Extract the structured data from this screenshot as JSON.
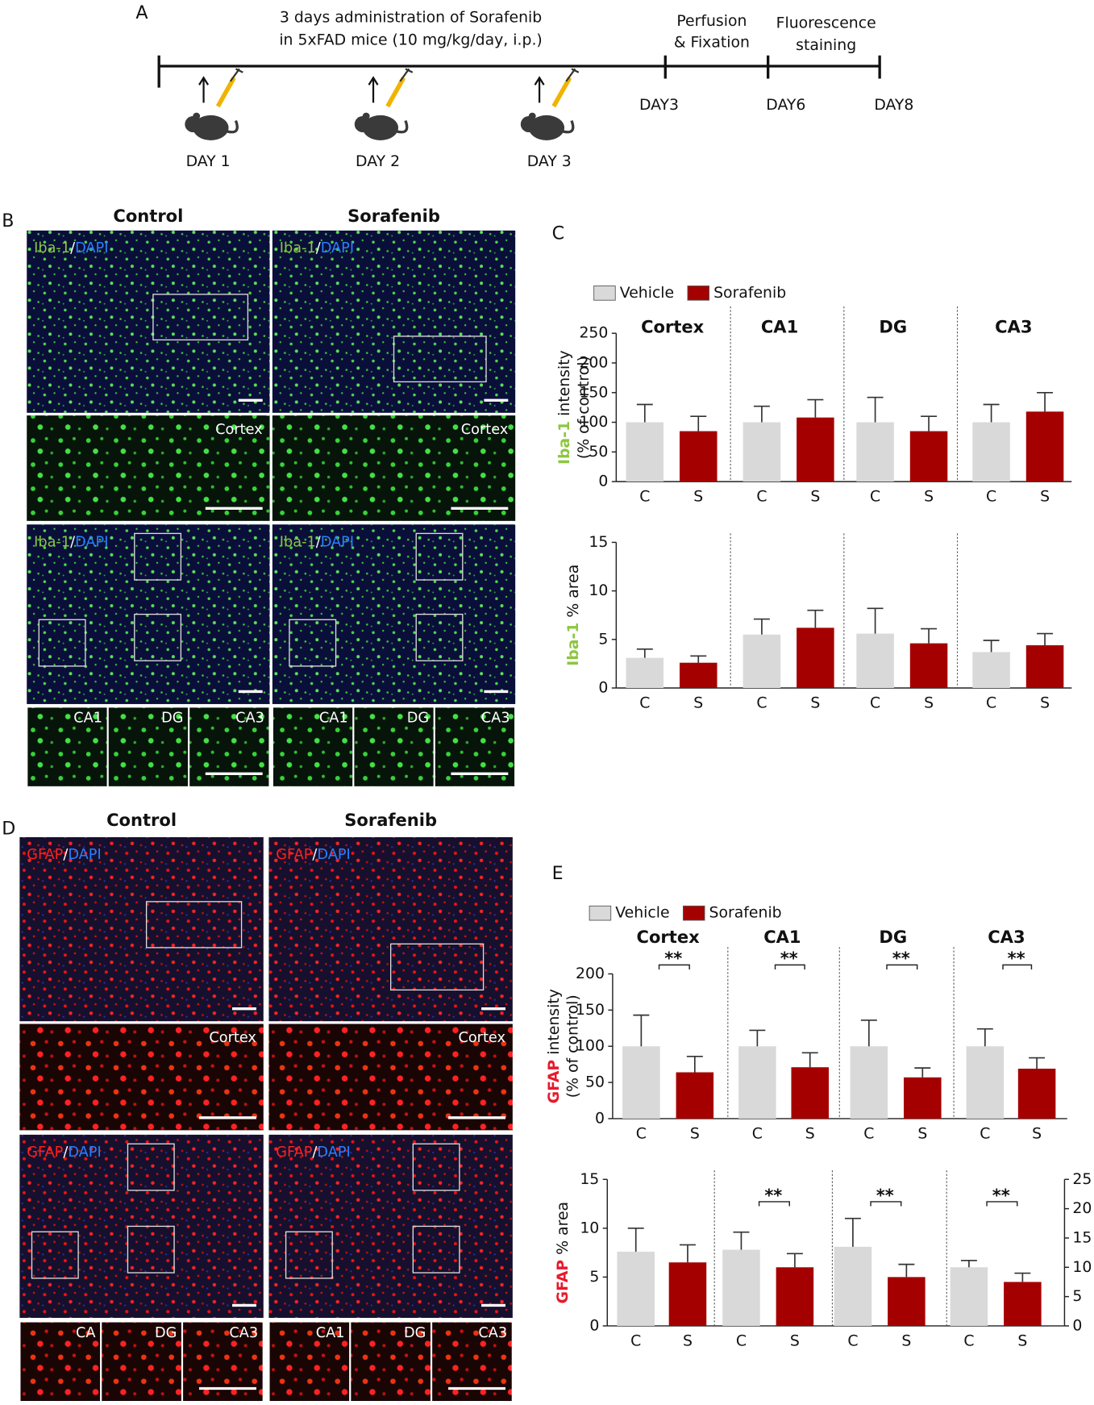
{
  "panel_labels": [
    "A",
    "B",
    "C",
    "D",
    "E"
  ],
  "timeline": {
    "caption": [
      "3 days administration of Sorafenib",
      "in 5xFAD mice (10 mg/kg/day, i.p.)"
    ],
    "perfusion": [
      "Perfusion",
      "& Fixation"
    ],
    "staining": [
      "Fluorescence",
      "staining"
    ],
    "milestones": [
      "DAY3",
      "DAY6",
      "DAY8"
    ],
    "injections": [
      "DAY 1",
      "DAY 2",
      "DAY 3"
    ]
  },
  "images": [
    {
      "conditions": [
        "Control",
        "Sorafenib"
      ],
      "stain": "Iba-1",
      "separator": "/",
      "counterstain": "DAPI",
      "zoom_label": "Cortex",
      "sub_labels": [
        [
          "CA1",
          "DG",
          "CA3"
        ],
        [
          "CA1",
          "DG",
          "CA3"
        ]
      ]
    },
    {
      "conditions": [
        "Control",
        "Sorafenib"
      ],
      "stain": "GFAP",
      "separator": "/",
      "counterstain": "DAPI",
      "zoom_label": "Cortex",
      "sub_labels": [
        [
          "CA",
          "DG",
          "CA3"
        ],
        [
          "CA1",
          "DG",
          "CA3"
        ]
      ]
    }
  ],
  "chart_data": [
    {
      "type": "bar",
      "legend": true,
      "regions": [
        "Cortex",
        "CA1",
        "DG",
        "CA3"
      ],
      "bar_labels": [
        "C",
        "S",
        "C",
        "S",
        "C",
        "S",
        "C",
        "S"
      ],
      "ylabel_marker": "Iba-1",
      "marker_color": "#8cc63f",
      "ylabel": "intensity",
      "ylabel_line2": "(% of control)",
      "ylim": [
        0,
        250
      ],
      "yticks": [
        0,
        50,
        100,
        150,
        200,
        250
      ],
      "series": [
        {
          "name": "Vehicle",
          "color": "#d9d9d9",
          "values": [
            100,
            100,
            100,
            100
          ],
          "errors": [
            30,
            27,
            42,
            30
          ]
        },
        {
          "name": "Sorafenib",
          "color": "#a50000",
          "values": [
            85,
            108,
            85,
            118
          ],
          "errors": [
            25,
            30,
            25,
            32
          ]
        }
      ]
    },
    {
      "type": "bar",
      "legend": false,
      "bar_labels": [
        "C",
        "S",
        "C",
        "S",
        "C",
        "S",
        "C",
        "S"
      ],
      "ylabel_marker": "Iba-1",
      "marker_color": "#8cc63f",
      "ylabel": "% area",
      "ylim": [
        0,
        15
      ],
      "yticks": [
        0,
        5,
        10,
        15
      ],
      "series": [
        {
          "name": "Vehicle",
          "color": "#d9d9d9",
          "values": [
            3.1,
            5.5,
            5.6,
            3.7
          ],
          "errors": [
            0.9,
            1.6,
            2.6,
            1.2
          ]
        },
        {
          "name": "Sorafenib",
          "color": "#a50000",
          "values": [
            2.6,
            6.2,
            4.6,
            4.4
          ],
          "errors": [
            0.7,
            1.8,
            1.5,
            1.2
          ]
        }
      ]
    },
    {
      "type": "bar",
      "legend": true,
      "regions": [
        "Cortex",
        "CA1",
        "DG",
        "CA3"
      ],
      "bar_labels": [
        "C",
        "S",
        "C",
        "S",
        "C",
        "S",
        "C",
        "S"
      ],
      "ylabel_marker": "GFAP",
      "marker_color": "#e8192c",
      "ylabel": "intensity",
      "ylabel_line2": "(% of control)",
      "ylim": [
        0,
        200
      ],
      "yticks": [
        0,
        50,
        100,
        150,
        200
      ],
      "significance": [
        "**",
        "**",
        "**",
        "**"
      ],
      "series": [
        {
          "name": "Vehicle",
          "color": "#d9d9d9",
          "values": [
            100,
            100,
            100,
            100
          ],
          "errors": [
            43,
            22,
            36,
            24
          ]
        },
        {
          "name": "Sorafenib",
          "color": "#a50000",
          "values": [
            64,
            71,
            57,
            69
          ],
          "errors": [
            22,
            20,
            13,
            15
          ]
        }
      ]
    },
    {
      "type": "bar",
      "legend": false,
      "bar_labels": [
        "C",
        "S",
        "C",
        "S",
        "C",
        "S",
        "C",
        "S"
      ],
      "ylabel_marker": "GFAP",
      "marker_color": "#e8192c",
      "ylabel": "% area",
      "ylim": [
        0,
        15
      ],
      "yticks": [
        0,
        5,
        10,
        15
      ],
      "y2lim": [
        0,
        25
      ],
      "y2ticks": [
        0,
        5,
        10,
        15,
        20,
        25
      ],
      "significance": [
        null,
        "**",
        "**",
        "**"
      ],
      "series": [
        {
          "name": "Vehicle",
          "color": "#d9d9d9",
          "values": [
            7.6,
            7.8,
            8.1,
            6.0
          ],
          "errors": [
            2.4,
            1.8,
            2.9,
            0.7
          ]
        },
        {
          "name": "Sorafenib",
          "color": "#a50000",
          "values": [
            6.5,
            6.0,
            5.0,
            4.5
          ],
          "errors": [
            1.8,
            1.4,
            1.3,
            0.9
          ]
        }
      ]
    }
  ]
}
